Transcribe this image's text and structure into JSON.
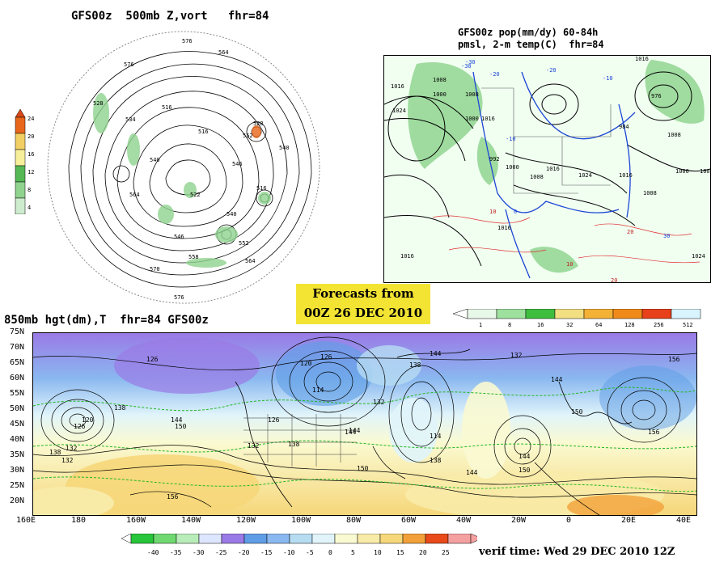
{
  "polar_panel": {
    "title": "GFS00z  500mb Z,vort   fhr=84",
    "contour_labels": [
      "576",
      "564",
      "576",
      "564",
      "528",
      "534",
      "516",
      "516",
      "540",
      "522",
      "552",
      "528",
      "540",
      "546",
      "516",
      "552",
      "558",
      "564",
      "570",
      "576",
      "546",
      "540"
    ],
    "colorbar": {
      "values": [
        "24",
        "20",
        "16",
        "12",
        "8",
        "4"
      ],
      "colors": [
        "#e8661a",
        "#f2cf63",
        "#f8ef9a",
        "#55b855",
        "#8fd38f",
        "#cdeccd"
      ]
    }
  },
  "conus_panel": {
    "title_line1": "GFS00z pop(mm/dy) 60-84h",
    "title_line2": "pmsl, 2-m temp(C)  fhr=84",
    "pressure_labels": [
      "1016",
      "1024",
      "1008",
      "1000",
      "1008",
      "1000",
      "1016",
      "992",
      "1000",
      "1008",
      "1016",
      "1024",
      "1016",
      "1008",
      "1016",
      "976",
      "984",
      "1008",
      "1000",
      "1008",
      "1016",
      "1024",
      "1016"
    ],
    "temp_labels": [
      "-30",
      "-20",
      "-10",
      "0",
      "10",
      "20",
      "30",
      "-20",
      "-30",
      "-10",
      "10",
      "20"
    ],
    "colorbar": {
      "values": [
        "1",
        "8",
        "16",
        "32",
        "64",
        "128",
        "256",
        "512"
      ],
      "colors": [
        "#e8f8e8",
        "#9ee09e",
        "#3fbd3f",
        "#f2df82",
        "#f3b135",
        "#ef8a1a",
        "#e8401a",
        "#d9f4ff"
      ]
    }
  },
  "forecast_box": {
    "line1": "Forecasts from",
    "line2": "00Z 26 DEC 2010"
  },
  "panel_850": {
    "title": "850mb hgt(dm),T  fhr=84 GFS00z",
    "lat_labels": [
      "75N",
      "70N",
      "65N",
      "60N",
      "55N",
      "50N",
      "45N",
      "40N",
      "35N",
      "30N",
      "25N",
      "20N"
    ],
    "lon_labels": [
      "160E",
      "180",
      "160W",
      "140W",
      "120W",
      "100W",
      "80W",
      "60W",
      "40W",
      "20W",
      "0",
      "20E",
      "40E"
    ],
    "height_labels": [
      "126",
      "120",
      "126",
      "114",
      "132",
      "138",
      "144",
      "132",
      "144",
      "156",
      "120",
      "126",
      "132",
      "138",
      "144",
      "150",
      "126",
      "132",
      "138",
      "144",
      "150",
      "156",
      "114",
      "138",
      "144",
      "150",
      "144",
      "150",
      "156",
      "132",
      "138",
      "144"
    ],
    "colorbar": {
      "values": [
        "-40",
        "-35",
        "-30",
        "-25",
        "-20",
        "-15",
        "-10",
        "-5",
        "0",
        "5",
        "10",
        "15",
        "20",
        "25"
      ],
      "colors": [
        "#27c53a",
        "#70d870",
        "#b8ecb8",
        "#dde6ff",
        "#9a7ae6",
        "#5f9ee6",
        "#8ab8f0",
        "#b6dcf2",
        "#e0f4fa",
        "#fafad2",
        "#f8eba8",
        "#f6d77a",
        "#f2a13a",
        "#e84a1a",
        "#f5a0a0"
      ]
    },
    "verif_time": "verif time: Wed 29 DEC 2010 12Z"
  }
}
